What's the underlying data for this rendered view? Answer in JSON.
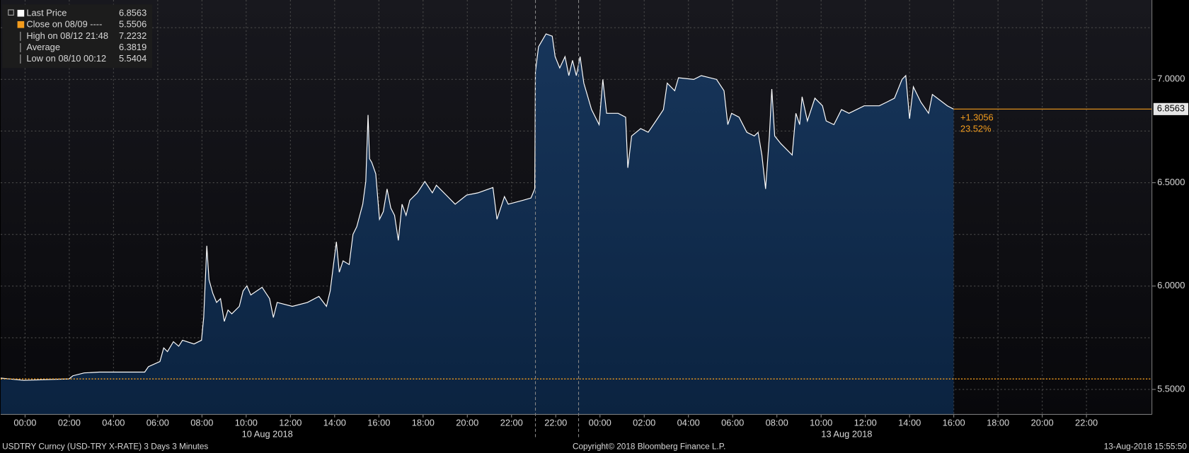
{
  "chart_data": {
    "type": "area",
    "legend": [
      {
        "label": "Last Price",
        "value": 6.8563
      },
      {
        "label": "Close on 08/09 ----",
        "value": 5.5506
      },
      {
        "label": "High on 08/12 21:48",
        "value": 7.2232
      },
      {
        "label": "Average",
        "value": 6.3819
      },
      {
        "label": "Low on 08/10 00:12",
        "value": 5.5404
      }
    ],
    "annotations": [
      "+1.3056",
      "23.52%"
    ],
    "date_labels": [
      "10 Aug 2018",
      "13 Aug 2018"
    ],
    "footer": {
      "left": "USDTRY Curncy (USD-TRY X-RATE) 3 Days 3 Minutes",
      "center": "Copyright© 2018 Bloomberg Finance L.P.",
      "right": "13-Aug-2018 15:55:50"
    },
    "series": [
      {
        "color": "#ffffff",
        "fill": "#0f2b4b",
        "x": [
          -1.1,
          -0.07,
          1.99,
          2.16,
          2.67,
          3.36,
          5.41,
          5.58,
          6.1,
          6.27,
          6.44,
          6.71,
          6.95,
          7.12,
          7.64,
          7.98,
          8.08,
          8.22,
          8.32,
          8.49,
          8.66,
          8.84,
          9.01,
          9.18,
          9.35,
          9.69,
          9.86,
          10.03,
          10.21,
          10.72,
          11.06,
          11.23,
          11.4,
          12.09,
          12.77,
          13.29,
          13.63,
          13.8,
          13.97,
          14.08,
          14.21,
          14.38,
          14.66,
          14.83,
          15.0,
          15.27,
          15.41,
          15.51,
          15.58,
          15.68,
          15.86,
          16.03,
          16.2,
          16.37,
          16.54,
          16.71,
          16.88,
          17.05,
          17.23,
          17.4,
          17.74,
          18.08,
          18.42,
          18.6,
          19.11,
          19.45,
          19.97,
          20.48,
          21.16,
          21.34,
          21.68,
          21.85,
          22.53,
          22.88,
          23.05,
          23.08,
          23.22,
          23.56,
          23.84,
          23.97,
          24.18,
          24.42,
          24.59,
          24.76,
          24.93,
          25.1,
          25.27,
          25.62,
          25.96,
          26.13,
          26.3,
          26.82,
          27.16,
          27.26,
          27.43,
          27.84,
          28.18,
          28.53,
          28.87,
          29.04,
          29.38,
          29.55,
          30.24,
          30.58,
          31.27,
          31.61,
          31.78,
          31.95,
          32.29,
          32.64,
          32.98,
          33.15,
          33.32,
          33.49,
          33.66,
          33.77,
          33.9,
          34.18,
          34.69,
          34.86,
          35.03,
          35.14,
          35.38,
          35.72,
          36.06,
          36.23,
          36.58,
          36.92,
          37.26,
          37.95,
          38.63,
          38.97,
          39.32,
          39.66,
          39.83,
          40.0,
          40.17,
          40.51,
          40.86,
          41.03,
          41.71,
          41.99
        ],
        "values": [
          5.555,
          5.544,
          5.551,
          5.566,
          5.58,
          5.584,
          5.584,
          5.61,
          5.635,
          5.701,
          5.683,
          5.731,
          5.709,
          5.738,
          5.72,
          5.738,
          5.848,
          6.195,
          6.031,
          5.965,
          5.921,
          5.939,
          5.829,
          5.884,
          5.866,
          5.902,
          5.976,
          6.001,
          5.957,
          5.994,
          5.939,
          5.848,
          5.921,
          5.902,
          5.921,
          5.95,
          5.902,
          5.976,
          6.122,
          6.214,
          6.067,
          6.122,
          6.104,
          6.25,
          6.287,
          6.396,
          6.506,
          6.828,
          6.616,
          6.598,
          6.543,
          6.323,
          6.36,
          6.47,
          6.378,
          6.342,
          6.221,
          6.396,
          6.342,
          6.415,
          6.451,
          6.506,
          6.451,
          6.488,
          6.433,
          6.396,
          6.44,
          6.451,
          6.477,
          6.323,
          6.433,
          6.396,
          6.415,
          6.426,
          6.47,
          7.037,
          7.158,
          7.22,
          7.209,
          7.11,
          7.055,
          7.11,
          7.018,
          7.092,
          7.018,
          7.11,
          6.982,
          6.854,
          6.781,
          7.0,
          6.836,
          6.836,
          6.817,
          6.572,
          6.726,
          6.762,
          6.744,
          6.799,
          6.854,
          6.982,
          6.945,
          7.008,
          7.0,
          7.018,
          7.0,
          6.945,
          6.781,
          6.836,
          6.817,
          6.744,
          6.726,
          6.744,
          6.634,
          6.47,
          6.726,
          6.953,
          6.726,
          6.689,
          6.634,
          6.836,
          6.781,
          6.916,
          6.799,
          6.909,
          6.872,
          6.799,
          6.781,
          6.854,
          6.836,
          6.872,
          6.872,
          6.89,
          6.909,
          7.0,
          7.018,
          6.81,
          6.964,
          6.89,
          6.836,
          6.927,
          6.872,
          6.856
        ]
      }
    ],
    "xlim": [
      -1.1,
      50.96
    ],
    "xticks": [
      {
        "value": 0,
        "label": "00:00"
      },
      {
        "value": 2,
        "label": "02:00"
      },
      {
        "value": 4,
        "label": "04:00"
      },
      {
        "value": 6,
        "label": "06:00"
      },
      {
        "value": 8,
        "label": "08:00"
      },
      {
        "value": 10,
        "label": "10:00"
      },
      {
        "value": 12,
        "label": "12:00"
      },
      {
        "value": 14,
        "label": "14:00"
      },
      {
        "value": 16,
        "label": "16:00"
      },
      {
        "value": 18,
        "label": "18:00"
      },
      {
        "value": 20,
        "label": "20:00"
      },
      {
        "value": 22,
        "label": "22:00"
      },
      {
        "value": 24,
        "label": "22:00"
      },
      {
        "value": 26,
        "label": "00:00"
      },
      {
        "value": 28,
        "label": "02:00"
      },
      {
        "value": 30,
        "label": "04:00"
      },
      {
        "value": 32,
        "label": "06:00"
      },
      {
        "value": 34,
        "label": "08:00"
      },
      {
        "value": 36,
        "label": "10:00"
      },
      {
        "value": 38,
        "label": "12:00"
      },
      {
        "value": 40,
        "label": "14:00"
      },
      {
        "value": 42,
        "label": "16:00"
      },
      {
        "value": 44,
        "label": "18:00"
      },
      {
        "value": 46,
        "label": "20:00"
      },
      {
        "value": 48,
        "label": "22:00"
      }
    ],
    "ylim": [
      5.379,
      7.384
    ],
    "yticks": [
      {
        "value": 5.5,
        "label": "5.5000"
      },
      {
        "value": 6,
        "label": "6.0000"
      },
      {
        "value": 6.5,
        "label": "6.5000"
      },
      {
        "value": 7,
        "label": "7.0000"
      }
    ],
    "minor_yticks": [
      5.75,
      6.25,
      6.75,
      7.25
    ],
    "grid": true,
    "accent_color": "#f39c1d",
    "legend_position": "top-left"
  }
}
